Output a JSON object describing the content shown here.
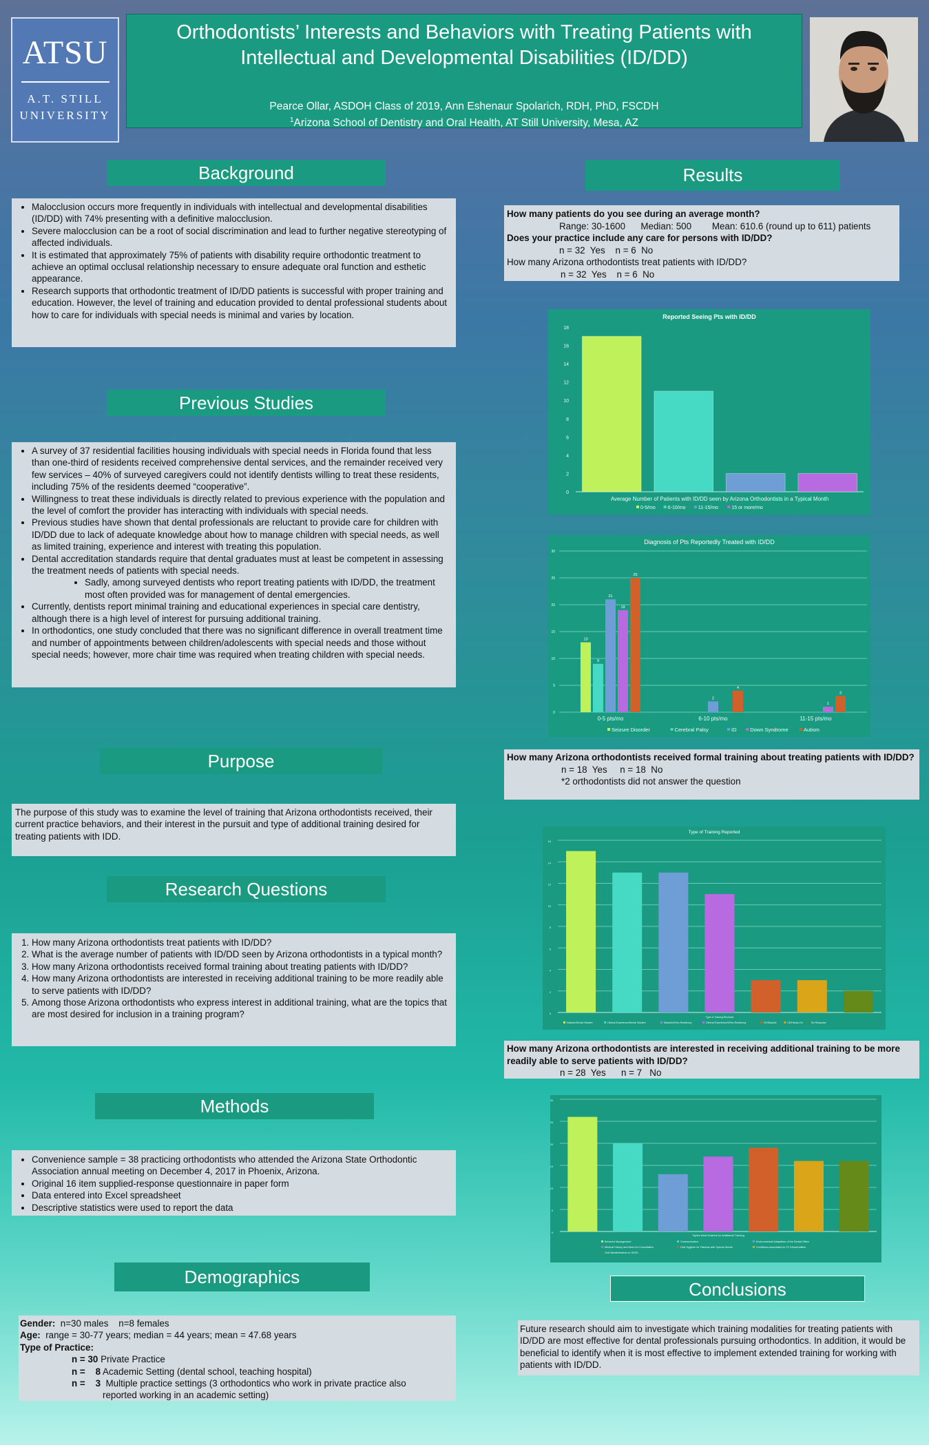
{
  "header": {
    "logo_big": "ATSU",
    "logo_line1": "A.T. Still",
    "logo_line2": "University",
    "title_line1": "Orthodontists’ Interests and Behaviors with Treating Patients with",
    "title_line2": "Intellectual and Developmental Disabilities (ID/DD)",
    "authors": "Pearce Ollar, ASDOH Class of 2019, Ann Eshenaur Spolarich, RDH, PhD, FSCDH",
    "affiliation_sup": "1",
    "affiliation": "Arizona School of Dentistry and Oral Health, AT Still University, Mesa, AZ"
  },
  "sections": {
    "background": "Background",
    "previous_studies": "Previous Studies",
    "purpose": "Purpose",
    "research_questions": "Research Questions",
    "methods": "Methods",
    "demographics": "Demographics",
    "results": "Results",
    "conclusions": "Conclusions"
  },
  "background_items": [
    "Malocclusion occurs more frequently in individuals with intellectual and developmental disabilities (ID/DD) with 74% presenting with a definitive malocclusion.",
    "Severe malocclusion can be a root of social discrimination and lead to further negative stereotyping of affected individuals.",
    "It is estimated that approximately 75% of patients with disability require orthodontic treatment to achieve an optimal occlusal relationship necessary to ensure adequate oral function and esthetic appearance.",
    "Research supports that orthodontic treatment of ID/DD patients is successful with proper training and education.   However, the level of training and education provided to dental professional students about how to care for individuals with special needs is minimal and varies by location."
  ],
  "previous_items": [
    "A survey of 37 residential facilities housing individuals with special needs in Florida found that less than one-third of residents received comprehensive dental services, and the remainder received very few services – 40% of surveyed caregivers could not identify dentists willing to treat these residents, including 75% of the residents deemed “cooperative”.",
    "Willingness to treat these individuals is directly related to previous experience with the population and the level of comfort the provider has interacting with individuals with special needs.",
    "Previous studies have shown that dental professionals are reluctant to provide care for children with ID/DD due to lack of adequate knowledge about how to manage children with special needs, as well as limited training, experience and interest with treating this population.",
    "Dental accreditation standards require that dental graduates must at least be competent in assessing the treatment needs of patients with special needs."
  ],
  "previous_sub": "Sadly, among surveyed dentists who report treating patients with ID/DD, the treatment most often provided was for management of dental emergencies.",
  "previous_items2": [
    "Currently, dentists report minimal training and educational experiences in special care dentistry, although there is a high level of interest for pursuing additional training.",
    "In orthodontics, one study concluded that there was no significant difference in overall treatment time and number of appointments between children/adolescents with special needs and those without special needs; however, more chair time was required when treating children with special needs."
  ],
  "purpose_text": "The purpose of this study was to examine the level of training that Arizona orthodontists received, their current practice behaviors, and their interest in the pursuit and type of additional training desired for treating patients with IDD.",
  "research_items": [
    "How many Arizona orthodontists treat patients with ID/DD?",
    "What is the average number of patients with ID/DD seen by Arizona orthodontists in a typical month?",
    "How many Arizona orthodontists received formal training about treating patients with ID/DD?",
    "How many Arizona orthodontists are interested in receiving additional training to be more readily able to serve patients with ID/DD?",
    "Among those Arizona orthodontists who express interest in additional training, what are the topics that are most desired for inclusion in a training program?"
  ],
  "methods_items": [
    "Convenience sample  = 38 practicing orthodontists who attended the Arizona State Orthodontic Association annual meeting on December 4, 2017 in Phoenix, Arizona.",
    "Original 16 item supplied-response questionnaire in paper form",
    "Data entered into Excel spreadsheet",
    "Descriptive statistics were used to report the data"
  ],
  "demographics": {
    "gender_label": "Gender:",
    "gender": "  n=30 males    n=8 females",
    "age_label": "Age:",
    "age": "  range = 30-77 years; median = 44 years; mean = 47.68 years",
    "practice_label": "Type of Practice:",
    "p1_n": "n = 30",
    "p1": " Private Practice",
    "p2_n": "n =    8",
    "p2": " Academic Setting (dental school, teaching hospital)",
    "p3_n": "n =    3",
    "p3": "  Multiple practice settings (3 orthodontics who work in private practice also",
    "p3b": "reported working in an academic setting)"
  },
  "results1": {
    "q1": "How many patients do you see during an average month?",
    "stats": "Range: 30-1600      Median: 500        Mean: 610.6 (round up to 611) patients",
    "q2": "Does your practice include any care for persons with ID/DD?",
    "a2": "n = 32  Yes    n = 6  No",
    "q3": "How many Arizona orthodontists treat patients with ID/DD?",
    "a3": "n = 32  Yes    n = 6  No"
  },
  "results2": {
    "q": "How many Arizona orthodontists received formal training about treating patients with ID/DD?",
    "a": "n = 18  Yes     n = 18  No",
    "note": "*2 orthodontists did not answer the question"
  },
  "results3": {
    "q": "How many Arizona orthodontists are interested in receiving additional training to be more readily able to serve patients with ID/DD?",
    "a": "n = 28  Yes      n = 7   No"
  },
  "conclusions_text": "Future research should aim to investigate which training modalities for treating patients with ID/DD are most effective for dental professionals pursuing orthodontics. In addition, it would be beneficial to identify when it is most effective to implement extended training for working with patients with ID/DD.",
  "colors": {
    "lime": "#bef15a",
    "turquoise": "#46d9c3",
    "blue": "#6f9ed6",
    "purple": "#b86be0",
    "orange": "#d2602a",
    "gold": "#dba51a",
    "olive": "#668a1a",
    "panel": "#1a9a80"
  },
  "chart_data": [
    {
      "type": "bar",
      "title": "Reported Seeing Pts with ID/DD",
      "xlabel": "Average Number of Patients with ID/DD seen by Arizona Orthodontists in a Typical Month",
      "categories": [
        "0-5/mo",
        "6-10/mo",
        "11-15/mo",
        "15 or more/mo"
      ],
      "values": [
        17,
        11,
        2,
        2
      ],
      "ylim": [
        0,
        18
      ],
      "yticks": [
        0,
        2,
        4,
        6,
        8,
        10,
        12,
        14,
        16,
        18
      ],
      "legend": "bottom"
    },
    {
      "type": "bar",
      "title": "Diagnosis of Pts Reportedly Treated with ID/DD",
      "categories": [
        "0-5 pts/mo",
        "6-10 pts/mo",
        "11-15 pts/mo"
      ],
      "series": [
        {
          "name": "Seizure Disorder",
          "values": [
            13,
            0,
            0
          ]
        },
        {
          "name": "Cerebral Palsy",
          "values": [
            9,
            0,
            0
          ]
        },
        {
          "name": "ID",
          "values": [
            21,
            2,
            0
          ]
        },
        {
          "name": "Down Syndrome",
          "values": [
            19,
            0,
            1
          ]
        },
        {
          "name": "Autism",
          "values": [
            25,
            4,
            3
          ]
        }
      ],
      "ylim": [
        0,
        30
      ],
      "yticks": [
        0,
        5,
        10,
        15,
        20,
        25,
        30
      ],
      "legend": "bottom"
    },
    {
      "type": "bar",
      "title": "Type of Training Reported",
      "xlabel": "Type of Training Received",
      "categories": [
        "Didactic/Dental Student",
        "Clinical Experience/Dental Student",
        "Didactic/Ortho Residency",
        "Clinical Experience/Ortho Residency",
        "CE/Didactic",
        "CE/Hands-On",
        "No Response"
      ],
      "values": [
        15,
        13,
        13,
        11,
        3,
        3,
        2
      ],
      "ylim": [
        0,
        16
      ],
      "yticks": [
        0,
        2,
        4,
        6,
        8,
        10,
        12,
        14,
        16
      ],
      "legend": "bottom"
    },
    {
      "type": "bar",
      "xlabel": "Topics Most Desired for Additional Training",
      "categories": [
        "Behavior Management",
        "Communication",
        "Environmental Adaptation of the Dental Office",
        "Medical History and Need for Consultation",
        "Oral Hygiene for Patients with Special Needs",
        "Conditions Associated w/ CF Abnormalities",
        "Oral Manifestations w/ ID/DD"
      ],
      "values": [
        26,
        20,
        13,
        17,
        19,
        16,
        16
      ],
      "ylim": [
        0,
        30
      ],
      "yticks": [
        0,
        5,
        10,
        15,
        20,
        25,
        30
      ],
      "legend": "bottom"
    }
  ]
}
